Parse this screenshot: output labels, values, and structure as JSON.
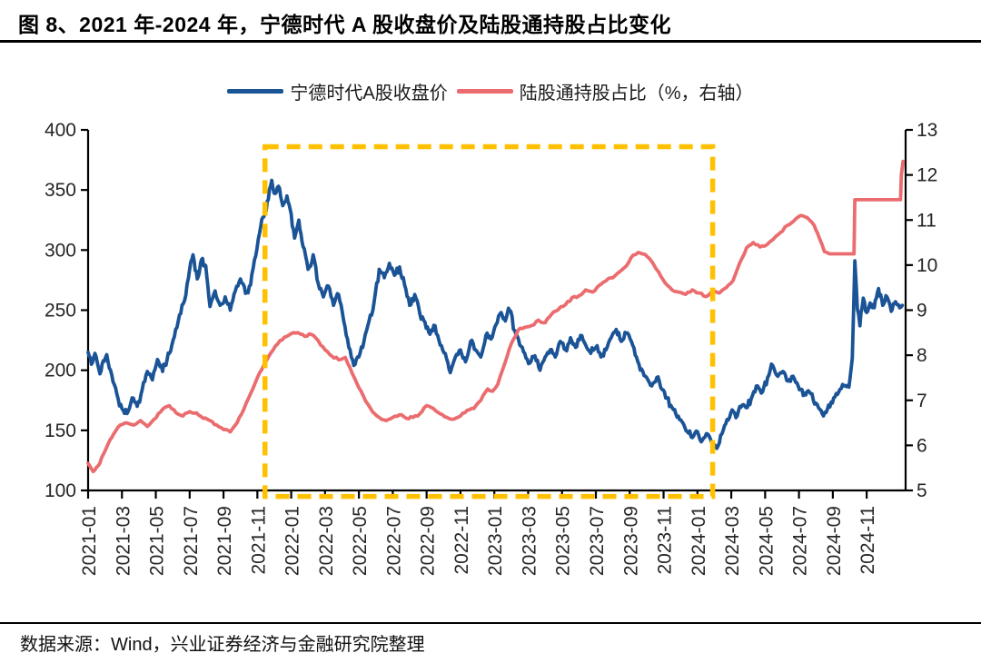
{
  "page": {
    "title": "图 8、2021 年-2024 年，宁德时代 A 股收盘价及陆股通持股占比变化",
    "source": "数据来源：Wind，兴业证券经济与金融研究院整理"
  },
  "chart_data": {
    "type": "line",
    "title": "2021年-2024年，宁德时代A股收盘价及陆股通持股占比变化",
    "legend_position": "top-center",
    "grid": false,
    "legend": [
      {
        "label": "宁德时代A股收盘价",
        "color": "#1A5396"
      },
      {
        "label": "陆股通持股占比（%，右轴）",
        "color": "#EB6C6F"
      }
    ],
    "x_axis": {
      "start_month": 0,
      "end_month": 48.3,
      "tick_months": [
        0,
        2,
        4,
        6,
        8,
        10,
        12,
        14,
        16,
        18,
        20,
        22,
        24,
        26,
        28,
        30,
        32,
        34,
        36,
        38,
        40,
        42,
        44,
        46
      ],
      "tick_labels": [
        "2021-01",
        "2021-03",
        "2021-05",
        "2021-07",
        "2021-09",
        "2021-11",
        "2022-01",
        "2022-03",
        "2022-05",
        "2022-07",
        "2022-09",
        "2022-11",
        "2023-01",
        "2023-03",
        "2023-05",
        "2023-07",
        "2023-09",
        "2023-11",
        "2024-01",
        "2024-03",
        "2024-05",
        "2024-07",
        "2024-09",
        "2024-11"
      ]
    },
    "y_left": {
      "min": 100,
      "max": 400,
      "ticks": [
        100,
        150,
        200,
        250,
        300,
        350,
        400
      ]
    },
    "y_right": {
      "min": 5,
      "max": 13,
      "ticks": [
        5,
        6,
        7,
        8,
        9,
        10,
        11,
        12,
        13
      ]
    },
    "highlight_box": {
      "x0_month": 10.45,
      "x1_month": 36.9,
      "y_top_value": 386,
      "y_bottom_value": 95,
      "color": "#FFC000"
    },
    "axis_color": "#000000",
    "tick_label_color": "#262626",
    "series": [
      {
        "name": "宁德时代A股收盘价",
        "axis": "left",
        "color": "#1A5396",
        "width": 3.8,
        "jitter": 4.0,
        "points": [
          [
            0,
            215
          ],
          [
            0.2,
            205
          ],
          [
            0.4,
            214
          ],
          [
            0.7,
            197
          ],
          [
            0.9,
            208
          ],
          [
            1.1,
            213
          ],
          [
            1.4,
            196
          ],
          [
            1.7,
            180
          ],
          [
            2.0,
            168
          ],
          [
            2.3,
            164
          ],
          [
            2.6,
            177
          ],
          [
            2.9,
            170
          ],
          [
            3.2,
            184
          ],
          [
            3.5,
            199
          ],
          [
            3.8,
            192
          ],
          [
            4.1,
            209
          ],
          [
            4.4,
            199
          ],
          [
            4.8,
            214
          ],
          [
            5.1,
            228
          ],
          [
            5.4,
            246
          ],
          [
            5.7,
            258
          ],
          [
            6.0,
            284
          ],
          [
            6.2,
            296
          ],
          [
            6.45,
            276
          ],
          [
            6.7,
            292
          ],
          [
            6.95,
            287
          ],
          [
            7.2,
            253
          ],
          [
            7.5,
            266
          ],
          [
            7.8,
            254
          ],
          [
            8.1,
            261
          ],
          [
            8.4,
            250
          ],
          [
            8.7,
            266
          ],
          [
            9.0,
            276
          ],
          [
            9.3,
            264
          ],
          [
            9.6,
            271
          ],
          [
            9.9,
            295
          ],
          [
            10.2,
            320
          ],
          [
            10.45,
            333
          ],
          [
            10.65,
            342
          ],
          [
            10.85,
            358
          ],
          [
            11.05,
            347
          ],
          [
            11.25,
            353
          ],
          [
            11.5,
            337
          ],
          [
            11.75,
            345
          ],
          [
            12.0,
            330
          ],
          [
            12.2,
            310
          ],
          [
            12.45,
            325
          ],
          [
            12.7,
            303
          ],
          [
            13.0,
            284
          ],
          [
            13.3,
            296
          ],
          [
            13.6,
            272
          ],
          [
            13.9,
            261
          ],
          [
            14.2,
            270
          ],
          [
            14.5,
            254
          ],
          [
            14.8,
            263
          ],
          [
            15.1,
            241
          ],
          [
            15.4,
            219
          ],
          [
            15.7,
            204
          ],
          [
            16.0,
            211
          ],
          [
            16.3,
            224
          ],
          [
            16.6,
            241
          ],
          [
            16.9,
            257
          ],
          [
            17.2,
            284
          ],
          [
            17.5,
            277
          ],
          [
            17.8,
            289
          ],
          [
            18.1,
            279
          ],
          [
            18.4,
            286
          ],
          [
            18.7,
            271
          ],
          [
            19.0,
            254
          ],
          [
            19.3,
            263
          ],
          [
            19.6,
            247
          ],
          [
            19.9,
            240
          ],
          [
            20.2,
            230
          ],
          [
            20.5,
            237
          ],
          [
            20.8,
            221
          ],
          [
            21.1,
            214
          ],
          [
            21.4,
            198
          ],
          [
            21.7,
            211
          ],
          [
            22.0,
            217
          ],
          [
            22.3,
            207
          ],
          [
            22.6,
            224
          ],
          [
            22.9,
            217
          ],
          [
            23.2,
            211
          ],
          [
            23.5,
            229
          ],
          [
            23.8,
            226
          ],
          [
            24.1,
            238
          ],
          [
            24.4,
            248
          ],
          [
            24.65,
            241
          ],
          [
            24.9,
            250
          ],
          [
            25.2,
            233
          ],
          [
            25.5,
            221
          ],
          [
            25.8,
            214
          ],
          [
            26.1,
            206
          ],
          [
            26.4,
            212
          ],
          [
            26.7,
            200
          ],
          [
            27.0,
            211
          ],
          [
            27.3,
            217
          ],
          [
            27.6,
            211
          ],
          [
            27.9,
            224
          ],
          [
            28.2,
            217
          ],
          [
            28.5,
            227
          ],
          [
            28.8,
            219
          ],
          [
            29.1,
            229
          ],
          [
            29.4,
            221
          ],
          [
            29.7,
            214
          ],
          [
            30.0,
            219
          ],
          [
            30.3,
            211
          ],
          [
            30.6,
            217
          ],
          [
            30.9,
            227
          ],
          [
            31.2,
            234
          ],
          [
            31.5,
            224
          ],
          [
            31.8,
            231
          ],
          [
            32.1,
            224
          ],
          [
            32.4,
            211
          ],
          [
            32.7,
            201
          ],
          [
            33.0,
            194
          ],
          [
            33.3,
            187
          ],
          [
            33.6,
            194
          ],
          [
            33.9,
            184
          ],
          [
            34.2,
            177
          ],
          [
            34.5,
            169
          ],
          [
            34.8,
            161
          ],
          [
            35.1,
            157
          ],
          [
            35.4,
            149
          ],
          [
            35.7,
            144
          ],
          [
            36.0,
            149
          ],
          [
            36.3,
            142
          ],
          [
            36.6,
            147
          ],
          [
            36.9,
            139
          ],
          [
            37.15,
            135
          ],
          [
            37.45,
            147
          ],
          [
            37.75,
            159
          ],
          [
            38.05,
            167
          ],
          [
            38.35,
            162
          ],
          [
            38.65,
            171
          ],
          [
            38.95,
            169
          ],
          [
            39.25,
            179
          ],
          [
            39.55,
            187
          ],
          [
            39.85,
            182
          ],
          [
            40.15,
            194
          ],
          [
            40.45,
            204
          ],
          [
            40.75,
            195
          ],
          [
            41.05,
            199
          ],
          [
            41.35,
            191
          ],
          [
            41.65,
            195
          ],
          [
            41.95,
            187
          ],
          [
            42.25,
            179
          ],
          [
            42.55,
            183
          ],
          [
            42.85,
            175
          ],
          [
            43.15,
            169
          ],
          [
            43.45,
            162
          ],
          [
            43.75,
            171
          ],
          [
            44.05,
            177
          ],
          [
            44.35,
            182
          ],
          [
            44.65,
            187
          ],
          [
            44.95,
            186
          ],
          [
            45.15,
            210
          ],
          [
            45.3,
            291
          ],
          [
            45.45,
            251
          ],
          [
            45.6,
            237
          ],
          [
            45.8,
            260
          ],
          [
            46.0,
            248
          ],
          [
            46.2,
            256
          ],
          [
            46.45,
            252
          ],
          [
            46.7,
            268
          ],
          [
            46.95,
            254
          ],
          [
            47.2,
            261
          ],
          [
            47.45,
            249
          ],
          [
            47.7,
            257
          ],
          [
            47.95,
            252
          ],
          [
            48.1,
            254
          ]
        ]
      },
      {
        "name": "陆股通持股占比（%，右轴）",
        "axis": "right",
        "color": "#EB6C6F",
        "width": 3.8,
        "jitter": 0.03,
        "points": [
          [
            0,
            5.6
          ],
          [
            0.3,
            5.42
          ],
          [
            0.6,
            5.55
          ],
          [
            0.9,
            5.8
          ],
          [
            1.2,
            6.05
          ],
          [
            1.5,
            6.25
          ],
          [
            1.9,
            6.45
          ],
          [
            2.3,
            6.5
          ],
          [
            2.7,
            6.45
          ],
          [
            3.1,
            6.55
          ],
          [
            3.5,
            6.42
          ],
          [
            3.9,
            6.58
          ],
          [
            4.4,
            6.8
          ],
          [
            4.8,
            6.88
          ],
          [
            5.2,
            6.72
          ],
          [
            5.6,
            6.65
          ],
          [
            6.0,
            6.75
          ],
          [
            6.4,
            6.72
          ],
          [
            6.8,
            6.6
          ],
          [
            7.2,
            6.55
          ],
          [
            7.6,
            6.45
          ],
          [
            8.0,
            6.35
          ],
          [
            8.4,
            6.3
          ],
          [
            8.8,
            6.5
          ],
          [
            9.2,
            6.8
          ],
          [
            9.6,
            7.15
          ],
          [
            10.0,
            7.5
          ],
          [
            10.4,
            7.8
          ],
          [
            10.8,
            8.05
          ],
          [
            11.2,
            8.25
          ],
          [
            11.6,
            8.4
          ],
          [
            12.0,
            8.48
          ],
          [
            12.4,
            8.5
          ],
          [
            12.8,
            8.42
          ],
          [
            13.2,
            8.46
          ],
          [
            13.6,
            8.32
          ],
          [
            14.0,
            8.12
          ],
          [
            14.4,
            7.98
          ],
          [
            14.8,
            7.9
          ],
          [
            15.2,
            7.95
          ],
          [
            15.6,
            7.6
          ],
          [
            16.0,
            7.28
          ],
          [
            16.4,
            6.98
          ],
          [
            16.8,
            6.75
          ],
          [
            17.2,
            6.62
          ],
          [
            17.6,
            6.55
          ],
          [
            18.0,
            6.62
          ],
          [
            18.4,
            6.68
          ],
          [
            18.8,
            6.6
          ],
          [
            19.2,
            6.62
          ],
          [
            19.6,
            6.7
          ],
          [
            20.0,
            6.88
          ],
          [
            20.4,
            6.82
          ],
          [
            20.8,
            6.7
          ],
          [
            21.2,
            6.62
          ],
          [
            21.6,
            6.58
          ],
          [
            22.0,
            6.65
          ],
          [
            22.4,
            6.78
          ],
          [
            22.8,
            6.82
          ],
          [
            23.2,
            7.0
          ],
          [
            23.6,
            7.25
          ],
          [
            23.9,
            7.2
          ],
          [
            24.2,
            7.35
          ],
          [
            24.6,
            7.8
          ],
          [
            25.0,
            8.25
          ],
          [
            25.4,
            8.55
          ],
          [
            25.8,
            8.62
          ],
          [
            26.2,
            8.66
          ],
          [
            26.6,
            8.78
          ],
          [
            27.0,
            8.72
          ],
          [
            27.4,
            8.92
          ],
          [
            27.8,
            9.02
          ],
          [
            28.2,
            9.12
          ],
          [
            28.6,
            9.28
          ],
          [
            29.0,
            9.32
          ],
          [
            29.4,
            9.45
          ],
          [
            29.8,
            9.4
          ],
          [
            30.2,
            9.55
          ],
          [
            30.6,
            9.65
          ],
          [
            31.0,
            9.72
          ],
          [
            31.4,
            9.85
          ],
          [
            31.8,
            9.98
          ],
          [
            32.2,
            10.22
          ],
          [
            32.5,
            10.28
          ],
          [
            32.9,
            10.24
          ],
          [
            33.3,
            10.08
          ],
          [
            33.7,
            9.85
          ],
          [
            34.1,
            9.6
          ],
          [
            34.5,
            9.45
          ],
          [
            34.9,
            9.4
          ],
          [
            35.3,
            9.35
          ],
          [
            35.7,
            9.45
          ],
          [
            36.1,
            9.38
          ],
          [
            36.5,
            9.3
          ],
          [
            36.9,
            9.42
          ],
          [
            37.3,
            9.38
          ],
          [
            37.7,
            9.5
          ],
          [
            38.1,
            9.65
          ],
          [
            38.5,
            10.05
          ],
          [
            38.9,
            10.38
          ],
          [
            39.3,
            10.5
          ],
          [
            39.7,
            10.4
          ],
          [
            40.1,
            10.45
          ],
          [
            40.5,
            10.58
          ],
          [
            40.9,
            10.72
          ],
          [
            41.3,
            10.88
          ],
          [
            41.7,
            10.98
          ],
          [
            42.1,
            11.1
          ],
          [
            42.5,
            11.05
          ],
          [
            42.9,
            10.88
          ],
          [
            43.2,
            10.6
          ],
          [
            43.5,
            10.3
          ],
          [
            43.8,
            10.25
          ],
          [
            45.25,
            10.25
          ],
          [
            45.3,
            11.45
          ],
          [
            48.0,
            11.45
          ],
          [
            48.05,
            12.0
          ],
          [
            48.15,
            12.3
          ]
        ]
      }
    ]
  }
}
